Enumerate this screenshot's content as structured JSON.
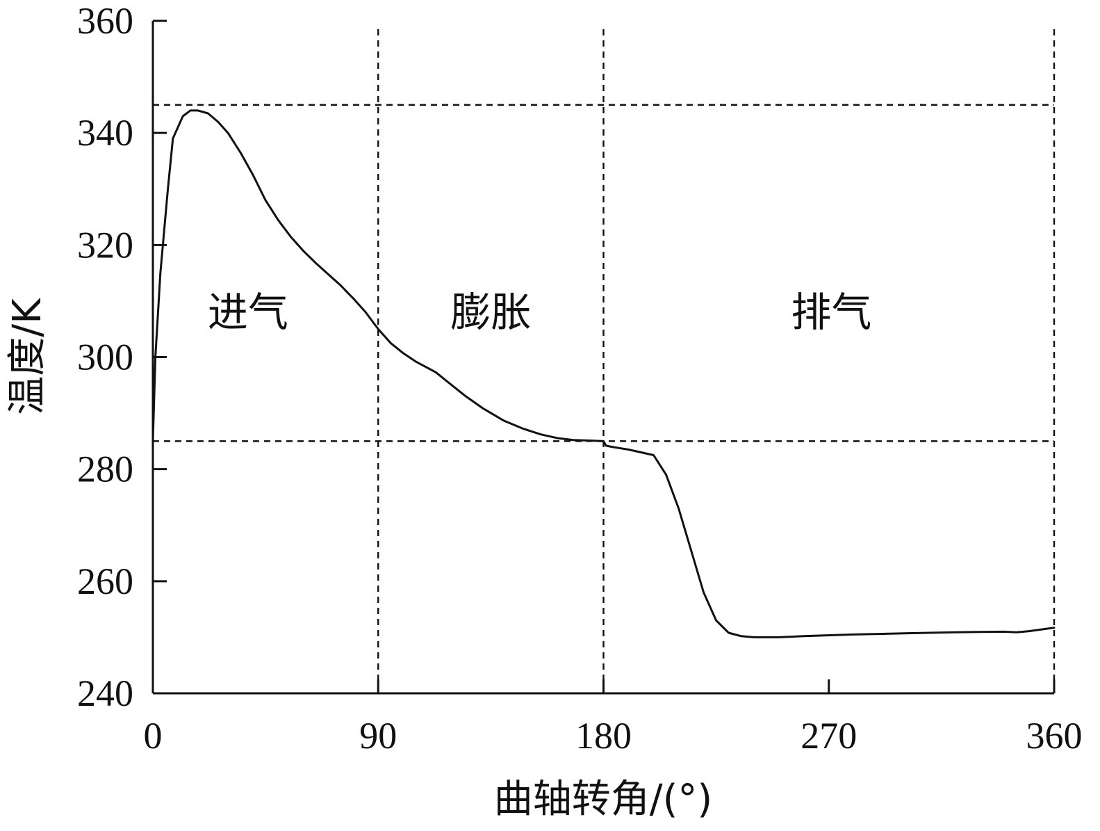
{
  "chart_data": {
    "type": "line",
    "title": "",
    "xlabel": "曲轴转角/(°)",
    "ylabel": "温度/K",
    "xlim": [
      0,
      360
    ],
    "ylim": [
      240,
      360
    ],
    "xticks": [
      0,
      90,
      180,
      270,
      360
    ],
    "yticks": [
      240,
      260,
      280,
      300,
      320,
      340,
      360
    ],
    "grid": false,
    "legend": "none",
    "vertical_reference_lines": [
      90,
      180,
      360
    ],
    "horizontal_reference_lines": [
      345,
      285
    ],
    "regions": [
      {
        "label": "进气",
        "x_center": 38,
        "y": 308
      },
      {
        "label": "膨胀",
        "x_center": 135,
        "y": 308
      },
      {
        "label": "排气",
        "x_center": 271,
        "y": 308
      }
    ],
    "series": [
      {
        "x": [
          0,
          1,
          3,
          6,
          8,
          12,
          15,
          18,
          22,
          26,
          30,
          35,
          40,
          45,
          50,
          55,
          60,
          65,
          70,
          75,
          80,
          85,
          88,
          90,
          95,
          100,
          105,
          110,
          113,
          118,
          125,
          132,
          140,
          148,
          155,
          162,
          168,
          175,
          180,
          181,
          183,
          190,
          195,
          200,
          205,
          210,
          215,
          220,
          225,
          230,
          235,
          240,
          245,
          250,
          260,
          280,
          300,
          320,
          340,
          345,
          350,
          355,
          360
        ],
        "y": [
          285,
          300,
          315,
          330,
          339,
          343,
          344,
          344,
          343.5,
          342,
          340,
          336.5,
          332.5,
          328,
          324.5,
          321.5,
          319,
          316.8,
          314.8,
          312.8,
          310.5,
          308,
          306.2,
          305,
          302.5,
          300.7,
          299.2,
          298,
          297.3,
          295.5,
          293,
          290.8,
          288.7,
          287.2,
          286.2,
          285.5,
          285.2,
          285.1,
          285,
          284.2,
          284,
          283.5,
          283,
          282.5,
          279,
          273,
          265.5,
          258,
          253,
          250.8,
          250.2,
          250,
          250,
          250,
          250.2,
          250.5,
          250.7,
          250.9,
          251,
          250.9,
          251.1,
          251.4,
          251.7
        ]
      }
    ]
  }
}
